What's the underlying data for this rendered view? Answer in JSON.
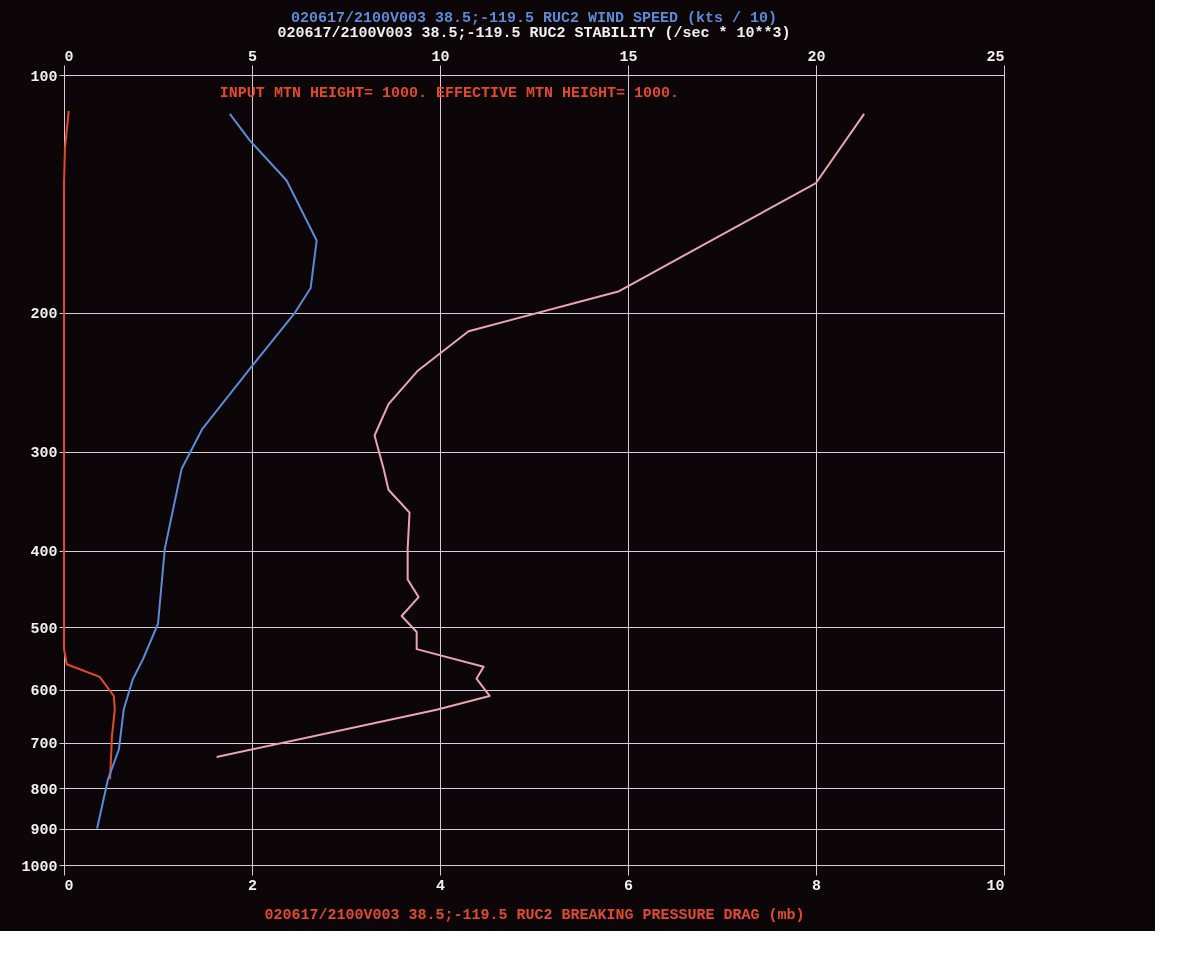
{
  "chart_data": {
    "type": "line",
    "title": "020617/2100V003 38.5;-119.5 RUC2 WIND SPEED (kts / 10)",
    "subtitle": "020617/2100V003 38.5;-119.5 RUC2 STABILITY (/sec * 10**3)",
    "xlabel": "020617/2100V003 38.5;-119.5 RUC2 BREAKING PRESSURE DRAG (mb)",
    "annotations": [
      "INPUT MTN HEIGHT= 1000.    EFFECTIVE MTN HEIGHT= 1000."
    ],
    "series": [
      {
        "color": "#e04a2c",
        "x": [
          0.05,
          0.01,
          0,
          0,
          0.03,
          0.38,
          0.53,
          0.54,
          0.51,
          0.49
        ],
        "values": [
          111,
          124,
          137,
          533,
          557,
          578,
          611,
          636,
          687,
          779
        ]
      },
      {
        "color": "#5b8ad8",
        "axis": "x2",
        "x": [
          4.41,
          4.94,
          5.92,
          6.72,
          6.56,
          6.14,
          5.02,
          3.67,
          3.13,
          2.68,
          2.5,
          2.1,
          1.83,
          1.59,
          1.46,
          1.17,
          0.88
        ],
        "values": [
          112,
          121,
          136,
          162,
          186,
          200,
          233,
          281,
          315,
          398,
          495,
          549,
          582,
          635,
          714,
          779,
          899
        ]
      },
      {
        "color": "#e8a4b8",
        "axis": "x2",
        "x": [
          21.28,
          20.0,
          14.74,
          10.76,
          9.4,
          8.63,
          8.26,
          8.5,
          8.63,
          9.19,
          9.14,
          9.14,
          9.43,
          8.98,
          9.38,
          9.38,
          11.16,
          10.97,
          11.32,
          9.91,
          4.06
        ],
        "values": [
          112,
          137,
          188,
          211,
          237,
          261,
          286,
          315,
          335,
          358,
          398,
          435,
          458,
          484,
          507,
          533,
          561,
          581,
          611,
          636,
          730
        ]
      }
    ],
    "xlim": [
      0,
      10
    ],
    "xticks": [
      0,
      2,
      4,
      6,
      8,
      10
    ],
    "x2lim": [
      0,
      25
    ],
    "x2ticks": [
      0,
      5,
      10,
      15,
      20,
      25
    ],
    "ylim": [
      1000,
      100
    ],
    "yticks": [
      100,
      200,
      300,
      400,
      500,
      600,
      700,
      800,
      900,
      1000
    ],
    "log": "y",
    "grid": true,
    "marker": "none",
    "line_style": "solid"
  }
}
